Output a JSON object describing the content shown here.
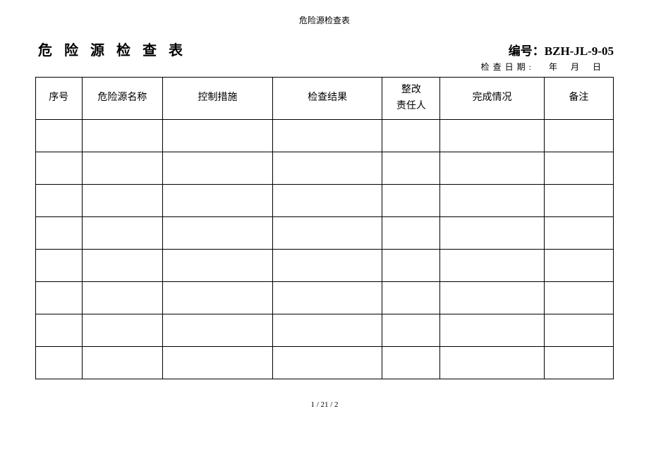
{
  "header": {
    "small_title": "危险源检查表",
    "main_title": "危 险 源 检 查 表",
    "code_label": "编号：",
    "code_value": "BZH-JL-9-05",
    "date_label": "检查日期:",
    "date_fields": "年 月 日"
  },
  "table": {
    "columns": [
      {
        "label": "序号",
        "width": "8%"
      },
      {
        "label": "危险源名称",
        "width": "14%"
      },
      {
        "label": "控制措施",
        "width": "19%"
      },
      {
        "label": "检查结果",
        "width": "19%"
      },
      {
        "label": "整改\n责任人",
        "width": "10%"
      },
      {
        "label": "完成情况",
        "width": "18%"
      },
      {
        "label": "备注",
        "width": "12%"
      }
    ],
    "rows": [
      [
        "",
        "",
        "",
        "",
        "",
        "",
        ""
      ],
      [
        "",
        "",
        "",
        "",
        "",
        "",
        ""
      ],
      [
        "",
        "",
        "",
        "",
        "",
        "",
        ""
      ],
      [
        "",
        "",
        "",
        "",
        "",
        "",
        ""
      ],
      [
        "",
        "",
        "",
        "",
        "",
        "",
        ""
      ],
      [
        "",
        "",
        "",
        "",
        "",
        "",
        ""
      ],
      [
        "",
        "",
        "",
        "",
        "",
        "",
        ""
      ],
      [
        "",
        "",
        "",
        "",
        "",
        "",
        ""
      ]
    ],
    "border_color": "#000000",
    "header_fontsize": 14,
    "cell_fontsize": 14
  },
  "footer": {
    "page_text": "1 / 21 / 2"
  }
}
